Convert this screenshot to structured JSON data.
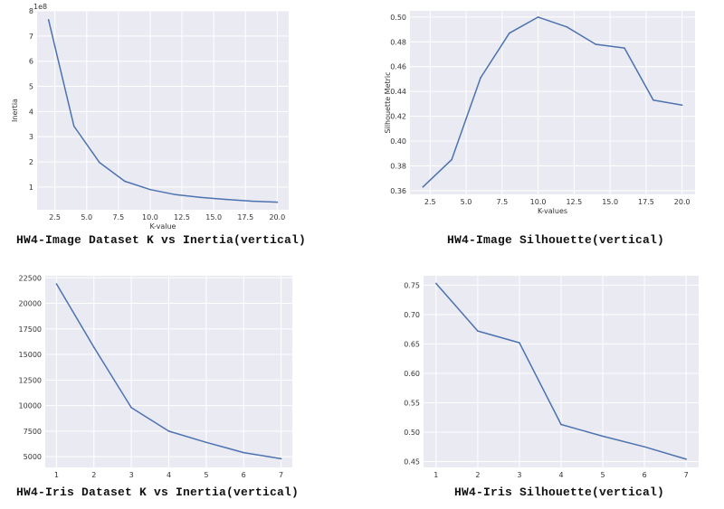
{
  "colors": {
    "plot_bg": "#eaeaf2",
    "grid": "#ffffff",
    "line": "#4c72b0"
  },
  "chart_data": [
    {
      "type": "line",
      "title": "",
      "xlabel": "K-value",
      "ylabel": "Inertia",
      "offset_text": "1e8",
      "x": [
        2,
        4,
        6,
        8,
        10,
        12,
        14,
        16,
        18,
        20
      ],
      "series": [
        {
          "values": [
            7.65,
            3.42,
            1.98,
            1.23,
            0.9,
            0.7,
            0.59,
            0.51,
            0.44,
            0.4
          ]
        }
      ],
      "xlim": [
        1.1,
        20.9
      ],
      "ylim": [
        0.1,
        8.0
      ],
      "xticks": [
        2.5,
        5.0,
        7.5,
        10.0,
        12.5,
        15.0,
        17.5,
        20.0
      ],
      "xtick_labels": [
        "2.5",
        "5.0",
        "7.5",
        "10.0",
        "12.5",
        "15.0",
        "17.5",
        "20.0"
      ],
      "yticks": [
        1,
        2,
        3,
        4,
        5,
        6,
        7,
        8
      ],
      "ytick_labels": [
        "1",
        "2",
        "3",
        "4",
        "5",
        "6",
        "7",
        "8"
      ],
      "grid": true
    },
    {
      "type": "line",
      "title": "",
      "xlabel": "K-values",
      "ylabel": "Silhouette Metric",
      "x": [
        2,
        4,
        6,
        8,
        10,
        12,
        14,
        16,
        18,
        20
      ],
      "series": [
        {
          "values": [
            0.363,
            0.385,
            0.451,
            0.487,
            0.5,
            0.492,
            0.478,
            0.475,
            0.433,
            0.429
          ]
        }
      ],
      "xlim": [
        1.1,
        20.9
      ],
      "ylim": [
        0.357,
        0.505
      ],
      "xticks": [
        2.5,
        5.0,
        7.5,
        10.0,
        12.5,
        15.0,
        17.5,
        20.0
      ],
      "xtick_labels": [
        "2.5",
        "5.0",
        "7.5",
        "10.0",
        "12.5",
        "15.0",
        "17.5",
        "20.0"
      ],
      "yticks": [
        0.36,
        0.38,
        0.4,
        0.42,
        0.44,
        0.46,
        0.48,
        0.5
      ],
      "ytick_labels": [
        "0.36",
        "0.38",
        "0.40",
        "0.42",
        "0.44",
        "0.46",
        "0.48",
        "0.50"
      ],
      "grid": true
    },
    {
      "type": "line",
      "title": "",
      "xlabel": "",
      "ylabel": "",
      "x": [
        1,
        2,
        3,
        4,
        5,
        6,
        7
      ],
      "series": [
        {
          "values": [
            21900,
            15700,
            9800,
            7500,
            6400,
            5400,
            4800
          ]
        }
      ],
      "xlim": [
        0.7,
        7.3
      ],
      "ylim": [
        3950,
        22700
      ],
      "xticks": [
        1,
        2,
        3,
        4,
        5,
        6,
        7
      ],
      "xtick_labels": [
        "1",
        "2",
        "3",
        "4",
        "5",
        "6",
        "7"
      ],
      "yticks": [
        5000,
        7500,
        10000,
        12500,
        15000,
        17500,
        20000,
        22500
      ],
      "ytick_labels": [
        "5000",
        "7500",
        "10000",
        "12500",
        "15000",
        "17500",
        "20000",
        "22500"
      ],
      "grid": true
    },
    {
      "type": "line",
      "title": "",
      "xlabel": "",
      "ylabel": "",
      "x": [
        1,
        2,
        3,
        4,
        5,
        6,
        7
      ],
      "series": [
        {
          "values": [
            0.753,
            0.672,
            0.652,
            0.513,
            0.493,
            0.475,
            0.454
          ]
        }
      ],
      "xlim": [
        0.7,
        7.3
      ],
      "ylim": [
        0.44,
        0.766
      ],
      "xticks": [
        1,
        2,
        3,
        4,
        5,
        6,
        7
      ],
      "xtick_labels": [
        "1",
        "2",
        "3",
        "4",
        "5",
        "6",
        "7"
      ],
      "yticks": [
        0.45,
        0.5,
        0.55,
        0.6,
        0.65,
        0.7,
        0.75
      ],
      "ytick_labels": [
        "0.45",
        "0.50",
        "0.55",
        "0.60",
        "0.65",
        "0.70",
        "0.75"
      ],
      "grid": true
    }
  ],
  "captions": [
    "HW4-Image Dataset K vs Inertia(vertical)",
    "HW4-Image Silhouette(vertical)",
    "HW4-Iris Dataset K vs Inertia(vertical)",
    "HW4-Iris Silhouette(vertical)"
  ]
}
